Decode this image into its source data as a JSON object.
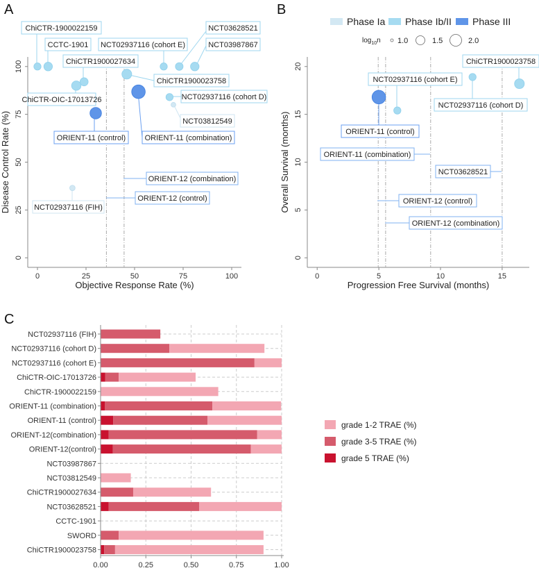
{
  "panels": {
    "a": "A",
    "b": "B",
    "c": "C"
  },
  "colors": {
    "phase_ia": "#d3e8f3",
    "phase_ib_ii": "#a6dbf1",
    "phase_iii": "#5f95e8",
    "grade_1_2": "#f3a7b3",
    "grade_3_5": "#d55b6c",
    "grade_5": "#c9122f"
  },
  "legend": {
    "phases": [
      "Phase Ia",
      "Phase Ib/II",
      "Phase III"
    ],
    "size_title": "log",
    "size_title_sub": "10",
    "size_title_end": "n",
    "sizes": [
      "1.0",
      "1.5",
      "2.0"
    ]
  },
  "chart_data": [
    {
      "panel": "A",
      "type": "scatter",
      "xlabel": "Objective Response Rate (%)",
      "ylabel": "Disease Control Rate (%)",
      "xlim": [
        -5,
        105
      ],
      "ylim": [
        -5,
        105
      ],
      "xticks": [
        "0",
        "25",
        "50",
        "75",
        "100"
      ],
      "yticks": [
        "0",
        "25",
        "50",
        "75",
        "100"
      ],
      "points": [
        {
          "label": "ChiCTR-1900022159",
          "x": 0,
          "y": 100,
          "phase": "Phase Ib/II",
          "log10n": 1.3
        },
        {
          "label": "CCTC-1901",
          "x": 5.5,
          "y": 100,
          "phase": "Phase Ib/II",
          "log10n": 1.45
        },
        {
          "label": "NCT02937116 (cohort E)",
          "x": 65,
          "y": 100,
          "phase": "Phase Ib/II",
          "log10n": 1.3
        },
        {
          "label": "NCT03628521",
          "x": 73,
          "y": 100,
          "phase": "Phase Ib/II",
          "log10n": 1.35
        },
        {
          "label": "NCT03987867",
          "x": 81,
          "y": 100,
          "phase": "Phase Ib/II",
          "log10n": 1.45
        },
        {
          "label": "ChiCTR1900027634",
          "x": 24,
          "y": 92,
          "phase": "Phase Ib/II",
          "log10n": 1.4
        },
        {
          "label": "ChiCTR1900023758",
          "x": 46,
          "y": 96,
          "phase": "Phase Ib/II",
          "log10n": 1.6
        },
        {
          "label": "ChiCTR-OIC-17013726",
          "x": 20,
          "y": 90,
          "phase": "Phase Ib/II",
          "log10n": 1.55
        },
        {
          "label": "NCT02937116 (cohort D)",
          "x": 68,
          "y": 84,
          "phase": "Phase Ib/II",
          "log10n": 1.3
        },
        {
          "label": "NCT03812549",
          "x": 70,
          "y": 80,
          "phase": "Phase Ia",
          "log10n": 1.1
        },
        {
          "label": "ORIENT-11 (control)",
          "x": 30,
          "y": 75.6,
          "phase": "Phase III",
          "log10n": 1.85
        },
        {
          "label": "ORIENT-11 (combination)",
          "x": 52,
          "y": 86.8,
          "phase": "Phase III",
          "log10n": 2.2
        },
        {
          "label": "NCT02937116 (FIH)",
          "x": 18,
          "y": 36.5,
          "phase": "Phase Ia",
          "log10n": 1.15
        }
      ],
      "reference_lines": [
        {
          "label": "ORIENT-12 (combination)",
          "x": 44.6,
          "y": 41
        },
        {
          "label": "ORIENT-12 (control)",
          "x": 35.5,
          "y": 31
        }
      ]
    },
    {
      "panel": "B",
      "type": "scatter",
      "xlabel": "Progression Free Survival (months)",
      "ylabel": "Overall Survival (months)",
      "xlim": [
        -0.8,
        17.2
      ],
      "ylim": [
        -1,
        21
      ],
      "xticks": [
        "0",
        "5",
        "10",
        "15"
      ],
      "yticks": [
        "0",
        "5",
        "10",
        "15",
        "20"
      ],
      "points": [
        {
          "label": "ChiCTR1900023758",
          "x": 16.4,
          "y": 18.2,
          "phase": "Phase Ib/II",
          "log10n": 1.6
        },
        {
          "label": "NCT02937116 (cohort E)",
          "x": 6.5,
          "y": 15.4,
          "phase": "Phase Ib/II",
          "log10n": 1.3
        },
        {
          "label": "NCT02937116 (cohort D)",
          "x": 12.6,
          "y": 18.9,
          "phase": "Phase Ib/II",
          "log10n": 1.3
        },
        {
          "label": "ORIENT-11 (control)",
          "x": 5.0,
          "y": 16.8,
          "phase": "Phase III",
          "log10n": 2.2
        }
      ],
      "reference_lines": [
        {
          "label": "ORIENT-11 (combination)",
          "x": 9.2,
          "y": 10.7
        },
        {
          "label": "NCT03628521",
          "x": 15.0,
          "y": 9.0
        },
        {
          "label": "ORIENT-12 (control)",
          "x": 4.95,
          "y": 6.0
        },
        {
          "label": "ORIENT-12 (combination)",
          "x": 5.55,
          "y": 3.6
        }
      ]
    },
    {
      "panel": "C",
      "type": "bar",
      "orientation": "horizontal",
      "stacked": true,
      "xlim": [
        0,
        1
      ],
      "xticks": [
        "0.00",
        "0.25",
        "0.50",
        "0.75",
        "1.00"
      ],
      "categories": [
        "NCT02937116 (FIH)",
        "NCT02937116 (cohort D)",
        "NCT02937116 (cohort E)",
        "ChiCTR-OIC-17013726",
        "ChiCTR-1900022159",
        "ORIENT-11 (combination)",
        "ORIENT-11 (control)",
        "ORIENT-12(combination)",
        "ORIENT-12(control)",
        "NCT03987867",
        "NCT03812549",
        "ChiCTR1900027634",
        "NCT03628521",
        "CCTC-1901",
        "SWORD",
        "ChiCTR1900023758"
      ],
      "series": [
        {
          "name": "grade 5 TRAE (%)",
          "key": "grade_5",
          "values": [
            0,
            0,
            0,
            0.025,
            0,
            0.023,
            0.07,
            0.045,
            0.068,
            0,
            0,
            0,
            0.045,
            0,
            0,
            0.02
          ]
        },
        {
          "name": "grade 3-5 TRAE (%)",
          "key": "grade_3_5",
          "values": [
            0.33,
            0.38,
            0.85,
            0.075,
            0,
            0.594,
            0.52,
            0.82,
            0.762,
            0,
            0,
            0.18,
            0.5,
            0,
            0.1,
            0.06
          ]
        },
        {
          "name": "grade 1-2 TRAE (%)",
          "key": "grade_1_2",
          "values": [
            0,
            0.525,
            0.15,
            0.425,
            0.65,
            0.38,
            0.41,
            0.135,
            0.17,
            0,
            0.167,
            0.43,
            0.455,
            0,
            0.8,
            0.82
          ]
        }
      ],
      "legend": [
        "grade 1-2 TRAE (%)",
        "grade 3-5 TRAE (%)",
        "grade 5 TRAE (%)"
      ]
    }
  ]
}
